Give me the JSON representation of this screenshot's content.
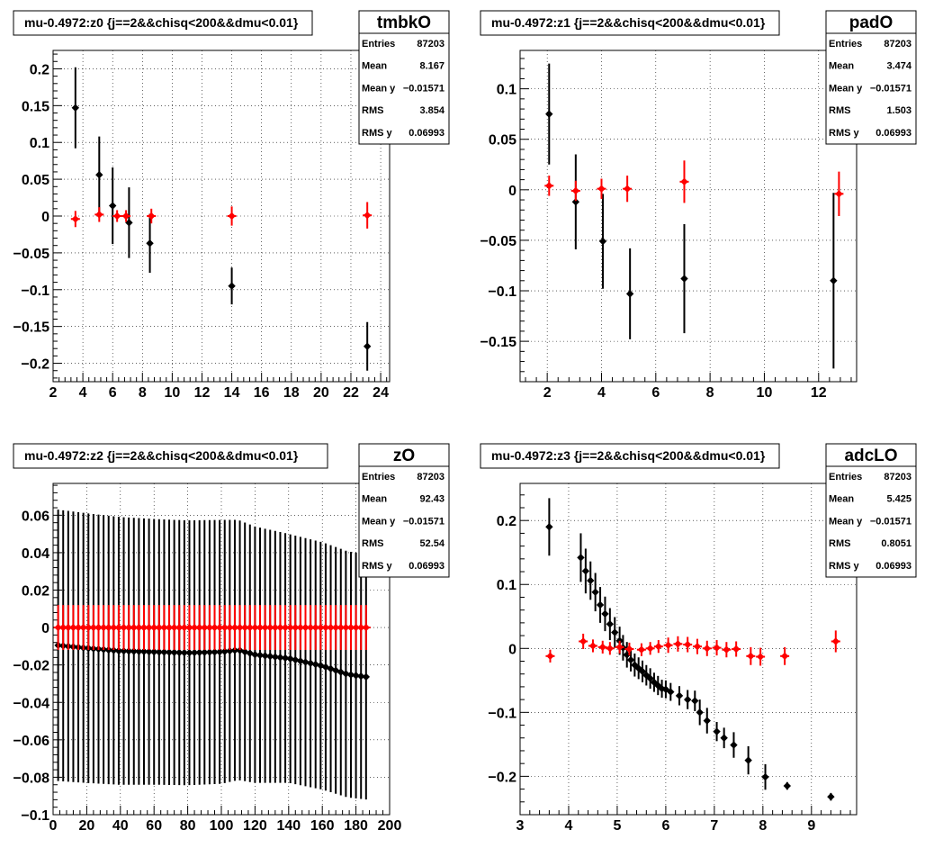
{
  "chart_data": [
    {
      "type": "scatter",
      "title": "mu-0.4972:z0 {j==2&&chisq<200&&dmu<0.01}",
      "stats": {
        "name": "tmbkO",
        "rows": [
          {
            "label": "Entries",
            "value": "87203"
          },
          {
            "label": "Mean",
            "value": "8.167"
          },
          {
            "label": "Mean y",
            "value": "−0.01571"
          },
          {
            "label": "RMS",
            "value": "3.854"
          },
          {
            "label": "RMS y",
            "value": "0.06993"
          }
        ]
      },
      "xlim": [
        2,
        24.6
      ],
      "ylim": [
        -0.225,
        0.225
      ],
      "xticks": [
        2,
        4,
        6,
        8,
        10,
        12,
        14,
        16,
        18,
        20,
        22,
        24
      ],
      "xtick_labels": [
        "2",
        "4",
        "6",
        "8",
        "10",
        "12",
        "14",
        "16",
        "18",
        "20",
        "22",
        "24"
      ],
      "yticks": [
        -0.2,
        -0.15,
        -0.1,
        -0.05,
        0,
        0.05,
        0.1,
        0.15,
        0.2
      ],
      "ytick_labels": [
        "−0.2",
        "−0.15",
        "−0.1",
        "−0.05",
        "0",
        "0.05",
        "0.1",
        "0.15",
        "0.2"
      ],
      "grid": true,
      "series": [
        {
          "color": "#000000",
          "points": [
            {
              "x": 3.5,
              "y": 0.147,
              "err": 0.055
            },
            {
              "x": 5.1,
              "y": 0.056,
              "err": 0.052
            },
            {
              "x": 6.0,
              "y": 0.014,
              "err": 0.052
            },
            {
              "x": 7.1,
              "y": -0.009,
              "err": 0.048
            },
            {
              "x": 8.5,
              "y": -0.037,
              "err": 0.04
            },
            {
              "x": 14.0,
              "y": -0.095,
              "err": 0.025
            },
            {
              "x": 23.1,
              "y": -0.177,
              "err": 0.033
            }
          ]
        },
        {
          "color": "#ff0000",
          "points": [
            {
              "x": 3.5,
              "y": -0.004,
              "err": 0.011
            },
            {
              "x": 5.1,
              "y": 0.002,
              "err": 0.01
            },
            {
              "x": 6.3,
              "y": 0.0,
              "err": 0.008
            },
            {
              "x": 6.9,
              "y": 0.0,
              "err": 0.008
            },
            {
              "x": 8.6,
              "y": 0.0,
              "err": 0.01
            },
            {
              "x": 14.0,
              "y": 0.0,
              "err": 0.013
            },
            {
              "x": 23.1,
              "y": 0.001,
              "err": 0.018
            }
          ]
        }
      ]
    },
    {
      "type": "scatter",
      "title": "mu-0.4972:z1 {j==2&&chisq<200&&dmu<0.01}",
      "stats": {
        "name": "padO",
        "rows": [
          {
            "label": "Entries",
            "value": "87203"
          },
          {
            "label": "Mean",
            "value": "3.474"
          },
          {
            "label": "Mean y",
            "value": "−0.01571"
          },
          {
            "label": "RMS",
            "value": "1.503"
          },
          {
            "label": "RMS y",
            "value": "0.06993"
          }
        ]
      },
      "xlim": [
        1.0,
        13.4
      ],
      "ylim": [
        -0.19,
        0.138
      ],
      "xticks": [
        2,
        4,
        6,
        8,
        10,
        12
      ],
      "xtick_labels": [
        "2",
        "4",
        "6",
        "8",
        "10",
        "12"
      ],
      "yticks": [
        -0.15,
        -0.1,
        -0.05,
        0,
        0.05,
        0.1
      ],
      "ytick_labels": [
        "−0.15",
        "−0.1",
        "−0.05",
        "0",
        "0.05",
        "0.1"
      ],
      "grid": true,
      "series": [
        {
          "color": "#000000",
          "points": [
            {
              "x": 2.07,
              "y": 0.075,
              "err": 0.05
            },
            {
              "x": 3.05,
              "y": -0.012,
              "err": 0.047
            },
            {
              "x": 4.05,
              "y": -0.051,
              "err": 0.047
            },
            {
              "x": 5.05,
              "y": -0.103,
              "err": 0.045
            },
            {
              "x": 7.05,
              "y": -0.088,
              "err": 0.054
            },
            {
              "x": 12.55,
              "y": -0.09,
              "err": 0.087
            }
          ]
        },
        {
          "color": "#ff0000",
          "points": [
            {
              "x": 2.07,
              "y": 0.004,
              "err": 0.01
            },
            {
              "x": 3.05,
              "y": -0.001,
              "err": 0.01
            },
            {
              "x": 4.0,
              "y": 0.001,
              "err": 0.01
            },
            {
              "x": 4.95,
              "y": 0.001,
              "err": 0.013
            },
            {
              "x": 7.05,
              "y": 0.008,
              "err": 0.021
            },
            {
              "x": 12.75,
              "y": -0.004,
              "err": 0.022
            }
          ]
        }
      ]
    },
    {
      "type": "scatter",
      "title": "mu-0.4972:z2 {j==2&&chisq<200&&dmu<0.01}",
      "stats": {
        "name": "zO",
        "rows": [
          {
            "label": "Entries",
            "value": "87203"
          },
          {
            "label": "Mean",
            "value": "92.43"
          },
          {
            "label": "Mean y",
            "value": "−0.01571"
          },
          {
            "label": "RMS",
            "value": "52.54"
          },
          {
            "label": "RMS y",
            "value": "0.06993"
          }
        ]
      },
      "xlim": [
        0,
        200
      ],
      "ylim": [
        -0.1,
        0.077
      ],
      "xticks": [
        0,
        20,
        40,
        60,
        80,
        100,
        120,
        140,
        160,
        180,
        200
      ],
      "xtick_labels": [
        "0",
        "20",
        "40",
        "60",
        "80",
        "100",
        "120",
        "140",
        "160",
        "180",
        "200"
      ],
      "yticks": [
        -0.1,
        -0.08,
        -0.06,
        -0.04,
        -0.02,
        0,
        0.02,
        0.04,
        0.06
      ],
      "ytick_labels": [
        "−0.1",
        "−0.08",
        "−0.06",
        "−0.04",
        "−0.02",
        "0",
        "0.02",
        "0.04",
        "0.06"
      ],
      "grid": true,
      "dense": {
        "x_start": 3,
        "x_step": 3,
        "n": 62,
        "black_y": [
          [
            3,
            -0.0095
          ],
          [
            20,
            -0.011
          ],
          [
            40,
            -0.0125
          ],
          [
            60,
            -0.013
          ],
          [
            80,
            -0.0135
          ],
          [
            100,
            -0.013
          ],
          [
            110,
            -0.012
          ],
          [
            120,
            -0.0145
          ],
          [
            140,
            -0.0165
          ],
          [
            160,
            -0.0205
          ],
          [
            175,
            -0.025
          ],
          [
            187,
            -0.0265
          ]
        ],
        "black_err": [
          [
            3,
            0.0725
          ],
          [
            60,
            0.071
          ],
          [
            100,
            0.0705
          ],
          [
            140,
            0.0665
          ],
          [
            187,
            0.0655
          ]
        ],
        "red_y": 0.0,
        "red_err": 0.012
      }
    },
    {
      "type": "scatter",
      "title": "mu-0.4972:z3 {j==2&&chisq<200&&dmu<0.01}",
      "stats": {
        "name": "adcLO",
        "rows": [
          {
            "label": "Entries",
            "value": "87203"
          },
          {
            "label": "Mean",
            "value": "5.425"
          },
          {
            "label": "Mean y",
            "value": "−0.01571"
          },
          {
            "label": "RMS",
            "value": "0.8051"
          },
          {
            "label": "RMS y",
            "value": "0.06993"
          }
        ]
      },
      "xlim": [
        3,
        9.93
      ],
      "ylim": [
        -0.26,
        0.258
      ],
      "xticks": [
        3,
        4,
        5,
        6,
        7,
        8,
        9
      ],
      "xtick_labels": [
        "3",
        "4",
        "5",
        "6",
        "7",
        "8",
        "9"
      ],
      "yticks": [
        -0.2,
        -0.1,
        0,
        0.1,
        0.2
      ],
      "ytick_labels": [
        "−0.2",
        "−0.1",
        "0",
        "0.1",
        "0.2"
      ],
      "grid": true,
      "series": [
        {
          "color": "#000000",
          "points": [
            {
              "x": 3.6,
              "y": 0.19,
              "err": 0.045
            },
            {
              "x": 4.25,
              "y": 0.142,
              "err": 0.038
            },
            {
              "x": 4.35,
              "y": 0.121,
              "err": 0.035
            },
            {
              "x": 4.45,
              "y": 0.106,
              "err": 0.03
            },
            {
              "x": 4.55,
              "y": 0.088,
              "err": 0.03
            },
            {
              "x": 4.65,
              "y": 0.068,
              "err": 0.028
            },
            {
              "x": 4.75,
              "y": 0.054,
              "err": 0.027
            },
            {
              "x": 4.85,
              "y": 0.038,
              "err": 0.025
            },
            {
              "x": 4.95,
              "y": 0.025,
              "err": 0.024
            },
            {
              "x": 5.05,
              "y": 0.012,
              "err": 0.022
            },
            {
              "x": 5.12,
              "y": 0.001,
              "err": 0.02
            },
            {
              "x": 5.2,
              "y": -0.01,
              "err": 0.02
            },
            {
              "x": 5.28,
              "y": -0.018,
              "err": 0.018
            },
            {
              "x": 5.36,
              "y": -0.026,
              "err": 0.018
            },
            {
              "x": 5.44,
              "y": -0.031,
              "err": 0.017
            },
            {
              "x": 5.52,
              "y": -0.036,
              "err": 0.017
            },
            {
              "x": 5.6,
              "y": -0.042,
              "err": 0.016
            },
            {
              "x": 5.68,
              "y": -0.047,
              "err": 0.016
            },
            {
              "x": 5.76,
              "y": -0.053,
              "err": 0.015
            },
            {
              "x": 5.84,
              "y": -0.058,
              "err": 0.015
            },
            {
              "x": 5.92,
              "y": -0.063,
              "err": 0.014
            },
            {
              "x": 6.0,
              "y": -0.064,
              "err": 0.014
            },
            {
              "x": 6.1,
              "y": -0.068,
              "err": 0.014
            },
            {
              "x": 6.28,
              "y": -0.074,
              "err": 0.015
            },
            {
              "x": 6.45,
              "y": -0.08,
              "err": 0.015
            },
            {
              "x": 6.6,
              "y": -0.082,
              "err": 0.016
            },
            {
              "x": 6.7,
              "y": -0.1,
              "err": 0.02
            },
            {
              "x": 6.85,
              "y": -0.113,
              "err": 0.02
            },
            {
              "x": 7.05,
              "y": -0.13,
              "err": 0.015
            },
            {
              "x": 7.2,
              "y": -0.14,
              "err": 0.016
            },
            {
              "x": 7.4,
              "y": -0.151,
              "err": 0.02
            },
            {
              "x": 7.7,
              "y": -0.175,
              "err": 0.022
            },
            {
              "x": 8.05,
              "y": -0.201,
              "err": 0.02
            },
            {
              "x": 8.5,
              "y": -0.215,
              "err": 0.006
            },
            {
              "x": 9.4,
              "y": -0.232,
              "err": 0.006
            }
          ]
        },
        {
          "color": "#ff0000",
          "points": [
            {
              "x": 3.62,
              "y": -0.012,
              "err": 0.01
            },
            {
              "x": 4.3,
              "y": 0.011,
              "err": 0.012
            },
            {
              "x": 4.5,
              "y": 0.004,
              "err": 0.01
            },
            {
              "x": 4.7,
              "y": 0.002,
              "err": 0.01
            },
            {
              "x": 4.85,
              "y": 0.0,
              "err": 0.01
            },
            {
              "x": 5.05,
              "y": 0.002,
              "err": 0.01
            },
            {
              "x": 5.25,
              "y": -0.001,
              "err": 0.01
            },
            {
              "x": 5.5,
              "y": -0.002,
              "err": 0.01
            },
            {
              "x": 5.68,
              "y": 0.0,
              "err": 0.01
            },
            {
              "x": 5.85,
              "y": 0.003,
              "err": 0.01
            },
            {
              "x": 6.05,
              "y": 0.005,
              "err": 0.012
            },
            {
              "x": 6.25,
              "y": 0.007,
              "err": 0.012
            },
            {
              "x": 6.45,
              "y": 0.006,
              "err": 0.012
            },
            {
              "x": 6.65,
              "y": 0.003,
              "err": 0.012
            },
            {
              "x": 6.85,
              "y": 0.0,
              "err": 0.012
            },
            {
              "x": 7.05,
              "y": 0.001,
              "err": 0.012
            },
            {
              "x": 7.25,
              "y": -0.002,
              "err": 0.012
            },
            {
              "x": 7.45,
              "y": -0.001,
              "err": 0.012
            },
            {
              "x": 7.75,
              "y": -0.012,
              "err": 0.014
            },
            {
              "x": 7.95,
              "y": -0.013,
              "err": 0.014
            },
            {
              "x": 8.45,
              "y": -0.012,
              "err": 0.014
            },
            {
              "x": 9.5,
              "y": 0.011,
              "err": 0.017
            }
          ]
        }
      ]
    }
  ]
}
